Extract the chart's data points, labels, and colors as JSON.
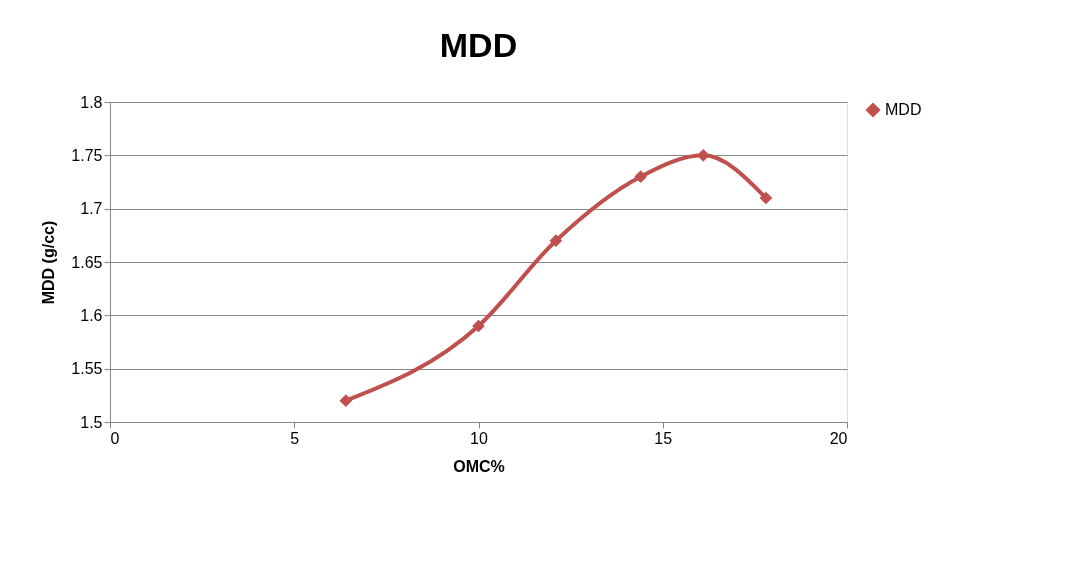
{
  "chart_data": {
    "type": "line",
    "title": "MDD",
    "xlabel": "OMC%",
    "ylabel": "MDD (g/cc)",
    "x": [
      6.4,
      10.0,
      12.1,
      14.4,
      16.1,
      17.8
    ],
    "series": [
      {
        "name": "MDD",
        "color": "#c0504d",
        "values": [
          1.52,
          1.59,
          1.67,
          1.73,
          1.75,
          1.71
        ]
      }
    ],
    "xlim": [
      0,
      20
    ],
    "xticks": [
      0,
      5,
      10,
      15,
      20
    ],
    "ylim": [
      1.5,
      1.8
    ],
    "yticks": [
      1.5,
      1.55,
      1.6,
      1.65,
      1.7,
      1.75,
      1.8
    ],
    "grid": "y",
    "legend": "right",
    "marker": "diamond",
    "line_style": "solid"
  }
}
